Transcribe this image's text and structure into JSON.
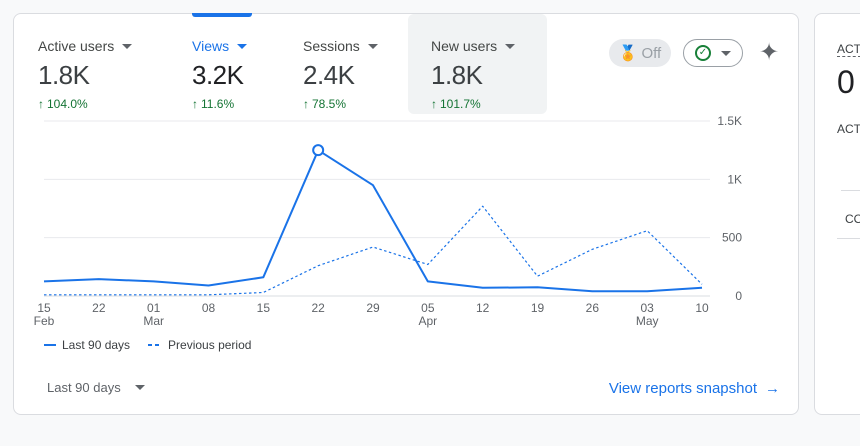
{
  "metrics": [
    {
      "label": "Active users",
      "value": "1.8K",
      "change": "104.0%"
    },
    {
      "label": "Views",
      "value": "3.2K",
      "change": "11.6%"
    },
    {
      "label": "Sessions",
      "value": "2.4K",
      "change": "78.5%"
    },
    {
      "label": "New users",
      "value": "1.8K",
      "change": "101.7%"
    }
  ],
  "toolbar": {
    "toggle_label": "Off",
    "toggle_icon": "medal-icon",
    "check_icon": "check-circle-icon",
    "insights_icon": "sparkle-icon"
  },
  "chart_data": {
    "type": "line",
    "x": [
      "15 Feb",
      "22",
      "01 Mar",
      "08",
      "15",
      "22",
      "29",
      "05 Apr",
      "12",
      "19",
      "26",
      "03 May",
      "10"
    ],
    "x_tick_top": [
      "15",
      "22",
      "01",
      "08",
      "15",
      "22",
      "29",
      "05",
      "12",
      "19",
      "26",
      "03",
      "10"
    ],
    "x_tick_bottom": [
      "Feb",
      "",
      "Mar",
      "",
      "",
      "",
      "",
      "Apr",
      "",
      "",
      "",
      "May",
      ""
    ],
    "y_ticks": [
      "0",
      "500",
      "1K",
      "1.5K"
    ],
    "ylim": [
      0,
      1500
    ],
    "series": [
      {
        "name": "Last 90 days",
        "style": "solid",
        "values": [
          125,
          145,
          125,
          90,
          160,
          1250,
          950,
          125,
          70,
          75,
          40,
          40,
          70
        ]
      },
      {
        "name": "Previous period",
        "style": "dashed",
        "values": [
          10,
          10,
          10,
          10,
          30,
          260,
          420,
          270,
          770,
          170,
          400,
          560,
          100
        ]
      }
    ],
    "highlight_index": 5,
    "color": "#1a73e8"
  },
  "legend": {
    "current": "Last 90 days",
    "previous": "Previous period"
  },
  "footer": {
    "range_label": "Last 90 days",
    "link_label": "View reports snapshot"
  },
  "side_card": {
    "title1": "ACT",
    "value": "0",
    "title2": "ACT",
    "row": "CO"
  }
}
